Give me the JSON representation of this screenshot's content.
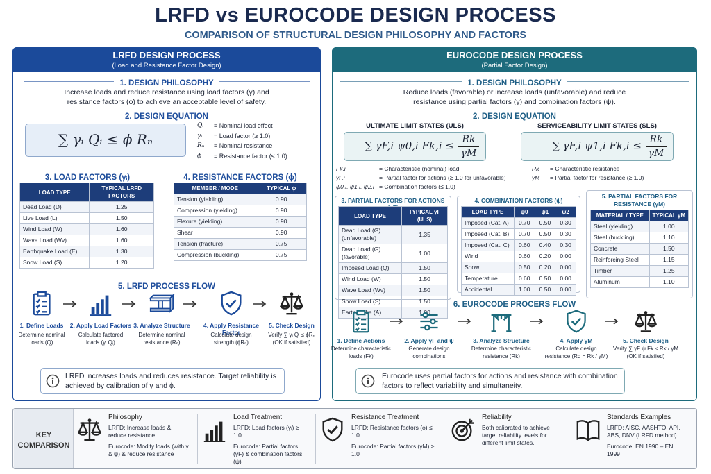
{
  "header": {
    "title": "LRFD vs EUROCODE DESIGN PROCESS",
    "subtitle": "COMPARISON OF STRUCTURAL DESIGN PHILOSOPHY AND FACTORS"
  },
  "lrfd": {
    "title": "LRFD DESIGN PROCESS",
    "subtitle": "(Load and Resistance Factor Design)",
    "philosophy": {
      "heading": "1. DESIGN PHILOSOPHY",
      "text": "Increase loads and reduce resistance using load factors (γ) and resistance factors (ϕ) to achieve an acceptable level of safety."
    },
    "equation": {
      "heading": "2. DESIGN EQUATION",
      "formula": "∑ γᵢ  Qᵢ  ≤  ϕ Rₙ",
      "definitions": [
        {
          "symbol": "Qᵢ",
          "meaning": "= Nominal load effect"
        },
        {
          "symbol": "γᵢ",
          "meaning": "= Load factor (≥ 1.0)"
        },
        {
          "symbol": "Rₙ",
          "meaning": "= Nominal resistance"
        },
        {
          "symbol": "ϕ",
          "meaning": "= Resistance factor (≤ 1.0)"
        }
      ]
    },
    "load_factors": {
      "heading": "3. LOAD FACTORS (γᵢ)",
      "columns": [
        "LOAD TYPE",
        "TYPICAL LRFD FACTORS"
      ],
      "rows": [
        [
          "Dead Load (D)",
          "1.25"
        ],
        [
          "Live Load (L)",
          "1.50"
        ],
        [
          "Wind Load (W)",
          "1.60"
        ],
        [
          "Wave Load (Wv)",
          "1.60"
        ],
        [
          "Earthquake Load (E)",
          "1.30"
        ],
        [
          "Snow Load (S)",
          "1.20"
        ]
      ]
    },
    "resistance_factors": {
      "heading": "4. RESISTANCE FACTORS (ϕ)",
      "columns": [
        "MEMBER / MODE",
        "TYPICAL ϕ"
      ],
      "rows": [
        [
          "Tension (yielding)",
          "0.90"
        ],
        [
          "Compression (yielding)",
          "0.90"
        ],
        [
          "Flexure (yielding)",
          "0.90"
        ],
        [
          "Shear",
          "0.90"
        ],
        [
          "Tension (fracture)",
          "0.75"
        ],
        [
          "Compression (buckling)",
          "0.75"
        ]
      ]
    },
    "flow": {
      "heading": "5. LRFD PROCESS FLOW",
      "steps": [
        {
          "title": "1. Define Loads",
          "text": "Determine nominal loads (Q)"
        },
        {
          "title": "2. Apply Load Factors",
          "text": "Calculate factored loads (γᵢ Qᵢ)"
        },
        {
          "title": "3. Analyze Structure",
          "text": "Determine nominal resistance (Rₙ)"
        },
        {
          "title": "4. Apply Resistance Factor",
          "text": "Calculate design strength (ϕRₙ)"
        },
        {
          "title": "5. Check Design",
          "text": "Verify ∑ γᵢ Qᵢ ≤ ϕRₙ (OK if satisfied)"
        }
      ]
    },
    "note": "LRFD increases loads and reduces resistance. Target reliability is achieved by calibration of γ and ϕ."
  },
  "eurocode": {
    "title": "EUROCODE DESIGN PROCESS",
    "subtitle": "(Partial Factor Design)",
    "philosophy": {
      "heading": "1. DESIGN PHILOSOPHY",
      "text": "Reduce loads (favorable) or increase loads (unfavorable) and reduce resistance using partial factors (γ) and combination factors (ψ)."
    },
    "equation": {
      "heading": "2. DESIGN EQUATION",
      "uls": {
        "heading": "ULTIMATE LIMIT STATES (ULS)",
        "lhs": "∑ γF,i  ψ0,i  Fk,i  ≤",
        "numerator": "Rk",
        "denominator": "γM",
        "definitions": [
          {
            "symbol": "Fk,i",
            "meaning": "= Characteristic (nominal) load"
          },
          {
            "symbol": "γF,i",
            "meaning": "= Partial factor for actions (≥ 1.0 for unfavorable)"
          },
          {
            "symbol": "ψ0,i, ψ1,i, ψ2,i",
            "meaning": "= Combination factors (≤ 1.0)"
          }
        ]
      },
      "sls": {
        "heading": "SERVICEABILITY LIMIT STATES (SLS)",
        "lhs": "∑ γF,i  ψ1,i  Fk,i  ≤",
        "numerator": "Rk",
        "denominator": "γM",
        "definitions": [
          {
            "symbol": "Rk",
            "meaning": "= Characteristic resistance"
          },
          {
            "symbol": "γM",
            "meaning": "= Partial factor for resistance (≥ 1.0)"
          }
        ]
      }
    },
    "partial_factors": {
      "heading": "3. PARTIAL FACTORS FOR ACTIONS (γF)",
      "columns": [
        "LOAD TYPE",
        "TYPICAL γF (ULS)"
      ],
      "rows": [
        [
          "Dead Load (G) (unfavorable)",
          "1.35"
        ],
        [
          "Dead Load (G) (favorable)",
          "1.00"
        ],
        [
          "Imposed Load (Q)",
          "1.50"
        ],
        [
          "Wind Load (W)",
          "1.50"
        ],
        [
          "Wave Load (Wv)",
          "1.50"
        ],
        [
          "Snow Load (S)",
          "1.50"
        ],
        [
          "Earthquake (A)",
          "1.00"
        ]
      ]
    },
    "combination_factors": {
      "heading": "4. COMBINATION FACTORS (ψ)",
      "columns": [
        "LOAD TYPE",
        "ψ0",
        "ψ1",
        "ψ2"
      ],
      "rows": [
        [
          "Imposed (Cat. A)",
          "0.70",
          "0.50",
          "0.30"
        ],
        [
          "Imposed (Cat. B)",
          "0.70",
          "0.50",
          "0.30"
        ],
        [
          "Imposed (Cat. C)",
          "0.60",
          "0.40",
          "0.30"
        ],
        [
          "Wind",
          "0.60",
          "0.20",
          "0.00"
        ],
        [
          "Snow",
          "0.50",
          "0.20",
          "0.00"
        ],
        [
          "Temperature",
          "0.60",
          "0.50",
          "0.00"
        ],
        [
          "Accidental",
          "1.00",
          "0.50",
          "0.00"
        ]
      ]
    },
    "resistance_factors": {
      "heading": "5. PARTIAL FACTORS FOR RESISTANCE (γM)",
      "columns": [
        "MATERIAL / TYPE",
        "TYPICAL γM"
      ],
      "rows": [
        [
          "Steel (yielding)",
          "1.00"
        ],
        [
          "Steel (buckling)",
          "1.10"
        ],
        [
          "Concrete",
          "1.50"
        ],
        [
          "Reinforcing Steel",
          "1.15"
        ],
        [
          "Timber",
          "1.25"
        ],
        [
          "Aluminum",
          "1.10"
        ]
      ]
    },
    "flow": {
      "heading": "6. EUROCODE PROCERS FLOW",
      "steps": [
        {
          "title": "1. Define Actions",
          "text": "Determine characteristic loads (Fk)"
        },
        {
          "title": "2. Apply γF and ψ",
          "text": "Generate design combinations"
        },
        {
          "title": "3. Analyze Structure",
          "text": "Determine characteristic resistance (Rk)"
        },
        {
          "title": "4. Apply γM",
          "text": "Calculate design resistance (Rd = Rk / γM)"
        },
        {
          "title": "5. Check Design",
          "text": "Verify ∑ γF ψ Fk ≤ Rk / γM (OK if satisfied)"
        }
      ]
    },
    "note": "Eurocode uses partial factors for actions and resistance with combination factors to reflect variability and simultaneity."
  },
  "key_comparison": {
    "label": "KEY COMPARISON",
    "items": [
      {
        "title": "Philosophy",
        "lines": [
          "LRFD: Increase loads & reduce resistance",
          "Eurocode: Modify loads (with γ & ψ) & reduce resistance"
        ]
      },
      {
        "title": "Load Treatment",
        "lines": [
          "LRFD: Load factors (γᵢ) ≥ 1.0",
          "Eurocode: Partial factors (γF) & combination factors (ψ)"
        ]
      },
      {
        "title": "Resistance Treatment",
        "lines": [
          "LRFD: Resistance factors (ϕ) ≤ 1.0",
          "Eurocode: Partial factors (γM) ≥ 1.0"
        ]
      },
      {
        "title": "Reliability",
        "lines": [
          "Both calibrated to achieve target reliability levels for different limit states."
        ]
      },
      {
        "title": "Standards Examples",
        "lines": [
          "LRFD: AISC, AASHTO, API, ABS, DNV (LRFD method)",
          "Eurocode: EN 1990 – EN 1999"
        ]
      }
    ]
  }
}
